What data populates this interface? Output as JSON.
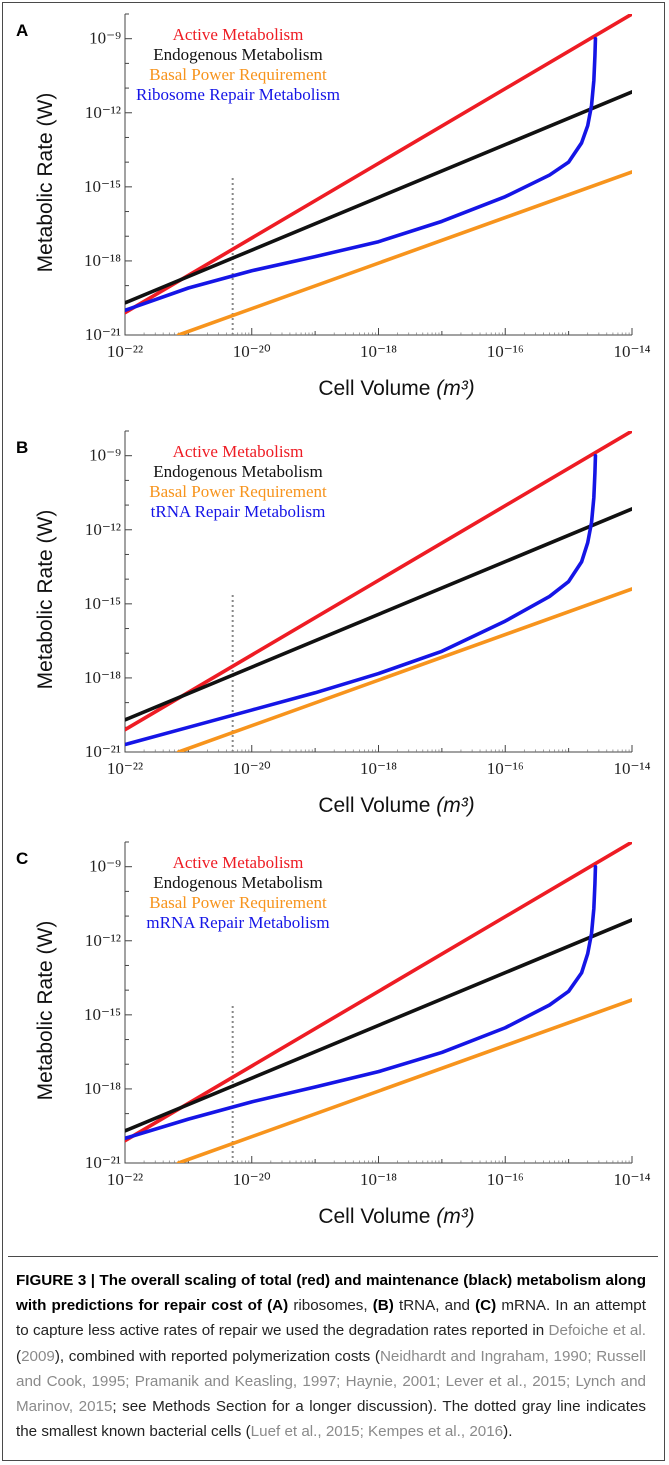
{
  "colors": {
    "active": "#ee1c24",
    "endogenous": "#111111",
    "basal": "#f7941d",
    "repair": "#1515e6",
    "dotted": "#888888",
    "ref_text": "#8a8a8a"
  },
  "chart_data": [
    {
      "type": "line",
      "panel_label": "A",
      "xlabel": "Cell Volume",
      "xlabel_unit": "(m³)",
      "ylabel": "Metabolic Rate (W)",
      "xscale": "log",
      "yscale": "log",
      "xlim": [
        1e-22,
        1e-14
      ],
      "ylim": [
        1e-21,
        1e-08
      ],
      "x_ticks": [
        "10⁻²²",
        "10⁻²⁰",
        "10⁻¹⁸",
        "10⁻¹⁶",
        "10⁻¹⁴"
      ],
      "y_ticks": [
        "10⁻²¹",
        "10⁻¹⁸",
        "10⁻¹⁵",
        "10⁻¹²",
        "10⁻⁹"
      ],
      "legend_position": "top-left",
      "reference_line_x": 5e-21,
      "series": [
        {
          "name": "Active Metabolism",
          "color_key": "active",
          "x": [
            1e-22,
            1e-14
          ],
          "y": [
            8e-21,
            1e-08
          ]
        },
        {
          "name": "Endogenous Metabolism",
          "color_key": "endogenous",
          "x": [
            1e-22,
            1e-14
          ],
          "y": [
            2e-20,
            7e-12
          ]
        },
        {
          "name": "Basal Power Requirement",
          "color_key": "basal",
          "x": [
            7e-22,
            1e-14
          ],
          "y": [
            1e-21,
            4e-15
          ]
        },
        {
          "name": "Ribosome Repair Metabolism",
          "color_key": "repair",
          "x": [
            1e-22,
            1e-21,
            1e-20,
            1e-19,
            1e-18,
            1e-17,
            1e-16,
            5e-16,
            1e-15,
            1.6e-15,
            2e-15,
            2.3e-15,
            2.5e-15,
            2.6e-15,
            2.65e-15
          ],
          "y": [
            1e-20,
            8e-20,
            4e-19,
            1.5e-18,
            6e-18,
            4e-17,
            4e-16,
            3e-15,
            1e-14,
            6e-14,
            3e-13,
            2e-12,
            2e-11,
            2e-10,
            1e-09
          ]
        }
      ]
    },
    {
      "type": "line",
      "panel_label": "B",
      "xlabel": "Cell Volume",
      "xlabel_unit": "(m³)",
      "ylabel": "Metabolic Rate (W)",
      "xscale": "log",
      "yscale": "log",
      "xlim": [
        1e-22,
        1e-14
      ],
      "ylim": [
        1e-21,
        1e-08
      ],
      "x_ticks": [
        "10⁻²²",
        "10⁻²⁰",
        "10⁻¹⁸",
        "10⁻¹⁶",
        "10⁻¹⁴"
      ],
      "y_ticks": [
        "10⁻²¹",
        "10⁻¹⁸",
        "10⁻¹⁵",
        "10⁻¹²",
        "10⁻⁹"
      ],
      "legend_position": "top-left",
      "reference_line_x": 5e-21,
      "series": [
        {
          "name": "Active Metabolism",
          "color_key": "active",
          "x": [
            1e-22,
            1e-14
          ],
          "y": [
            8e-21,
            1e-08
          ]
        },
        {
          "name": "Endogenous Metabolism",
          "color_key": "endogenous",
          "x": [
            1e-22,
            1e-14
          ],
          "y": [
            2e-20,
            7e-12
          ]
        },
        {
          "name": "Basal Power Requirement",
          "color_key": "basal",
          "x": [
            7e-22,
            1e-14
          ],
          "y": [
            1e-21,
            4e-15
          ]
        },
        {
          "name": "tRNA Repair Metabolism",
          "color_key": "repair",
          "x": [
            1e-22,
            1e-21,
            1e-20,
            1e-19,
            1e-18,
            1e-17,
            1e-16,
            5e-16,
            1e-15,
            1.6e-15,
            2e-15,
            2.3e-15,
            2.5e-15,
            2.6e-15,
            2.65e-15
          ],
          "y": [
            2e-21,
            1e-20,
            5e-20,
            2.5e-19,
            1.5e-18,
            1.2e-17,
            2e-16,
            2e-15,
            8e-15,
            5e-14,
            3e-13,
            2e-12,
            2e-11,
            2e-10,
            1e-09
          ]
        }
      ]
    },
    {
      "type": "line",
      "panel_label": "C",
      "xlabel": "Cell Volume",
      "xlabel_unit": "(m³)",
      "ylabel": "Metabolic Rate (W)",
      "xscale": "log",
      "yscale": "log",
      "xlim": [
        1e-22,
        1e-14
      ],
      "ylim": [
        1e-21,
        1e-08
      ],
      "x_ticks": [
        "10⁻²²",
        "10⁻²⁰",
        "10⁻¹⁸",
        "10⁻¹⁶",
        "10⁻¹⁴"
      ],
      "y_ticks": [
        "10⁻²¹",
        "10⁻¹⁸",
        "10⁻¹⁵",
        "10⁻¹²",
        "10⁻⁹"
      ],
      "legend_position": "top-left",
      "reference_line_x": 5e-21,
      "series": [
        {
          "name": "Active Metabolism",
          "color_key": "active",
          "x": [
            1e-22,
            1e-14
          ],
          "y": [
            8e-21,
            1e-08
          ]
        },
        {
          "name": "Endogenous Metabolism",
          "color_key": "endogenous",
          "x": [
            1e-22,
            1e-14
          ],
          "y": [
            2e-20,
            7e-12
          ]
        },
        {
          "name": "Basal Power Requirement",
          "color_key": "basal",
          "x": [
            7e-22,
            1e-14
          ],
          "y": [
            1e-21,
            4e-15
          ]
        },
        {
          "name": "mRNA Repair Metabolism",
          "color_key": "repair",
          "x": [
            1e-22,
            1e-21,
            1e-20,
            1e-19,
            1e-18,
            1e-17,
            1e-16,
            5e-16,
            1e-15,
            1.6e-15,
            2e-15,
            2.3e-15,
            2.5e-15,
            2.6e-15,
            2.65e-15
          ],
          "y": [
            1e-20,
            6e-20,
            3e-19,
            1.2e-18,
            5e-18,
            3e-17,
            3e-16,
            2.5e-15,
            9e-15,
            5e-14,
            3e-13,
            2e-12,
            2e-11,
            2e-10,
            1e-09
          ]
        }
      ]
    }
  ],
  "caption": {
    "figure_label": "FIGURE 3 |",
    "bold_title": "The overall scaling of total (red) and maintenance (black) metabolism along with predictions for repair cost of",
    "a_label": "(A)",
    "a_text": "ribosomes,",
    "b_label": "(B)",
    "b_text": "tRNA, and",
    "c_label": "(C)",
    "c_text": "mRNA. In an attempt to capture less active rates of repair we used the degradation rates reported in",
    "ref1": "Defoiche et al.",
    "ref1_year": "2009",
    "text2": "), combined with reported polymerization costs (",
    "refs2": "Neidhardt and Ingraham, 1990; Russell and Cook, 1995; Pramanik and Keasling, 1997; Haynie, 2001; Lever et al., 2015; Lynch and Marinov, 2015",
    "text3": "; see Methods Section for a longer discussion). The dotted gray line indicates the smallest known bacterial cells (",
    "refs3": "Luef et al., 2015; Kempes et al., 2016",
    "text4": ")."
  }
}
